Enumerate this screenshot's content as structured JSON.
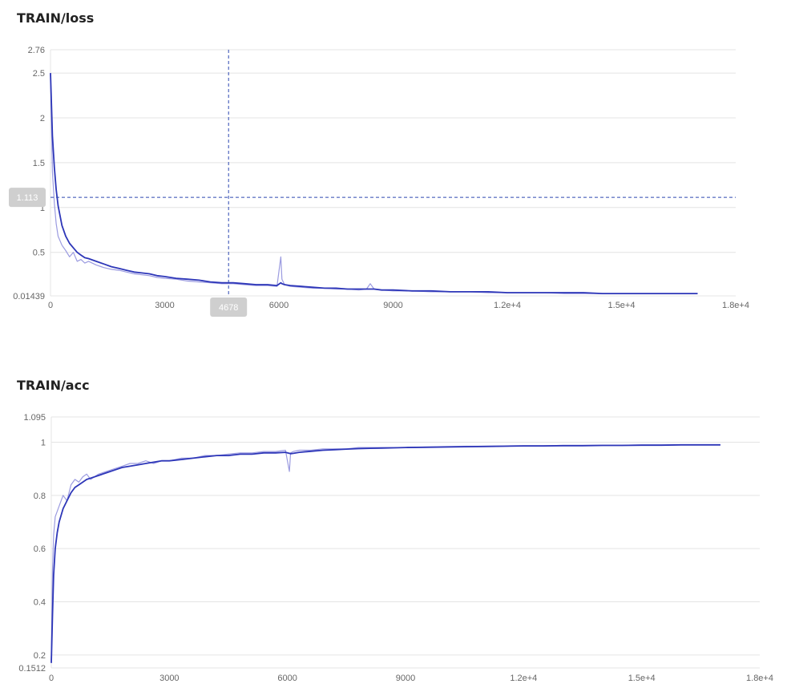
{
  "colors": {
    "raw_series": "#9b9be0",
    "smoothed_series": "#2d36b8",
    "gridline": "#e4e4e4",
    "axis_text": "#666666",
    "cursor_line": "#2d48b0",
    "cursor_tag_bg": "#cfcfcf"
  },
  "chart_data": [
    {
      "type": "line",
      "title": "TRAIN/loss",
      "xlabel": "",
      "ylabel": "",
      "xlim": [
        0,
        18000
      ],
      "ylim": [
        0.01439,
        2.76
      ],
      "x_ticks": [
        0,
        3000,
        6000,
        9000,
        12000,
        15000,
        18000
      ],
      "x_tick_labels": [
        "0",
        "3000",
        "6000",
        "9000",
        "1.2e+4",
        "1.5e+4",
        "1.8e+4"
      ],
      "y_ticks": [
        0.01439,
        0.5,
        1,
        1.5,
        2,
        2.5,
        2.76
      ],
      "y_tick_labels": [
        "0.01439",
        "0.5",
        "1",
        "1.5",
        "2",
        "2.5",
        "2.76"
      ],
      "grid": true,
      "cursor": {
        "x": 4678,
        "y": 1.113,
        "x_label": "4678",
        "y_label": "1.113"
      },
      "series": [
        {
          "role": "raw",
          "x": [
            0,
            50,
            100,
            150,
            200,
            300,
            400,
            500,
            600,
            700,
            800,
            900,
            1000,
            1200,
            1400,
            1600,
            1800,
            2000,
            2200,
            2400,
            2600,
            2800,
            3000,
            3300,
            3600,
            3900,
            4200,
            4500,
            4800,
            5100,
            5400,
            5700,
            5950,
            6050,
            6080,
            6150,
            6300,
            6600,
            6900,
            7200,
            7500,
            7800,
            8100,
            8300,
            8400,
            8500,
            8700,
            9000,
            9500,
            10000,
            10500,
            11000,
            11500,
            12000,
            12500,
            13000,
            13500,
            14000,
            14500,
            15000,
            15500,
            16000,
            16500,
            17000
          ],
          "values": [
            2.5,
            1.4,
            1.05,
            0.82,
            0.68,
            0.58,
            0.52,
            0.45,
            0.5,
            0.4,
            0.42,
            0.38,
            0.4,
            0.36,
            0.33,
            0.31,
            0.3,
            0.28,
            0.26,
            0.25,
            0.24,
            0.22,
            0.21,
            0.2,
            0.18,
            0.17,
            0.16,
            0.15,
            0.15,
            0.14,
            0.13,
            0.13,
            0.12,
            0.45,
            0.2,
            0.14,
            0.12,
            0.11,
            0.1,
            0.1,
            0.09,
            0.09,
            0.08,
            0.09,
            0.15,
            0.09,
            0.08,
            0.07,
            0.07,
            0.06,
            0.06,
            0.06,
            0.05,
            0.05,
            0.05,
            0.05,
            0.04,
            0.04,
            0.04,
            0.04,
            0.04,
            0.04,
            0.04,
            0.04
          ]
        },
        {
          "role": "smoothed",
          "x": [
            0,
            50,
            100,
            150,
            200,
            300,
            400,
            500,
            600,
            700,
            800,
            900,
            1000,
            1200,
            1400,
            1600,
            1800,
            2000,
            2200,
            2400,
            2600,
            2800,
            3000,
            3300,
            3600,
            3900,
            4200,
            4500,
            4800,
            5100,
            5400,
            5700,
            5950,
            6050,
            6080,
            6150,
            6300,
            6600,
            6900,
            7200,
            7500,
            7800,
            8100,
            8300,
            8400,
            8500,
            8700,
            9000,
            9500,
            10000,
            10500,
            11000,
            11500,
            12000,
            12500,
            13000,
            13500,
            14000,
            14500,
            15000,
            15500,
            16000,
            16500,
            17000
          ],
          "values": [
            2.5,
            1.8,
            1.45,
            1.2,
            1.02,
            0.8,
            0.68,
            0.6,
            0.55,
            0.5,
            0.47,
            0.44,
            0.43,
            0.4,
            0.37,
            0.34,
            0.32,
            0.3,
            0.28,
            0.27,
            0.26,
            0.24,
            0.23,
            0.21,
            0.2,
            0.19,
            0.17,
            0.16,
            0.16,
            0.15,
            0.14,
            0.14,
            0.13,
            0.16,
            0.15,
            0.14,
            0.13,
            0.12,
            0.11,
            0.1,
            0.1,
            0.09,
            0.09,
            0.09,
            0.09,
            0.09,
            0.08,
            0.08,
            0.07,
            0.07,
            0.06,
            0.06,
            0.06,
            0.05,
            0.05,
            0.05,
            0.05,
            0.05,
            0.04,
            0.04,
            0.04,
            0.04,
            0.04,
            0.04
          ]
        }
      ]
    },
    {
      "type": "line",
      "title": "TRAIN/acc",
      "xlabel": "",
      "ylabel": "",
      "xlim": [
        0,
        18000
      ],
      "ylim": [
        0.1512,
        1.095
      ],
      "x_ticks": [
        0,
        3000,
        6000,
        9000,
        12000,
        15000,
        18000
      ],
      "x_tick_labels": [
        "0",
        "3000",
        "6000",
        "9000",
        "1.2e+4",
        "1.5e+4",
        "1.8e+4"
      ],
      "y_ticks": [
        0.1512,
        0.2,
        0.4,
        0.6,
        0.8,
        1,
        1.095
      ],
      "y_tick_labels": [
        "0.1512",
        "0.2",
        "0.4",
        "0.6",
        "0.8",
        "1",
        "1.095"
      ],
      "grid": true,
      "series": [
        {
          "role": "raw",
          "x": [
            0,
            30,
            60,
            100,
            150,
            200,
            300,
            400,
            500,
            600,
            700,
            800,
            900,
            1000,
            1200,
            1400,
            1600,
            1800,
            2000,
            2200,
            2400,
            2600,
            2800,
            3000,
            3300,
            3600,
            3900,
            4200,
            4500,
            4800,
            5100,
            5400,
            5700,
            5950,
            6050,
            6080,
            6150,
            6300,
            6600,
            6900,
            7200,
            7500,
            7800,
            8100,
            8400,
            8700,
            9000,
            9500,
            10000,
            10500,
            11000,
            11500,
            12000,
            12500,
            13000,
            13500,
            14000,
            14500,
            15000,
            15500,
            16000,
            16500,
            17000
          ],
          "values": [
            0.18,
            0.52,
            0.65,
            0.72,
            0.74,
            0.76,
            0.8,
            0.78,
            0.84,
            0.86,
            0.85,
            0.87,
            0.88,
            0.86,
            0.88,
            0.89,
            0.9,
            0.91,
            0.92,
            0.92,
            0.93,
            0.92,
            0.93,
            0.93,
            0.94,
            0.94,
            0.95,
            0.95,
            0.955,
            0.96,
            0.96,
            0.965,
            0.965,
            0.97,
            0.89,
            0.96,
            0.965,
            0.97,
            0.97,
            0.975,
            0.975,
            0.975,
            0.98,
            0.98,
            0.98,
            0.98,
            0.98,
            0.982,
            0.984,
            0.985,
            0.985,
            0.986,
            0.987,
            0.987,
            0.988,
            0.988,
            0.989,
            0.989,
            0.99,
            0.99,
            0.99,
            0.99,
            0.99
          ]
        },
        {
          "role": "smoothed",
          "x": [
            0,
            30,
            60,
            100,
            150,
            200,
            300,
            400,
            500,
            600,
            700,
            800,
            900,
            1000,
            1200,
            1400,
            1600,
            1800,
            2000,
            2200,
            2400,
            2600,
            2800,
            3000,
            3300,
            3600,
            3900,
            4200,
            4500,
            4800,
            5100,
            5400,
            5700,
            5950,
            6050,
            6080,
            6150,
            6300,
            6600,
            6900,
            7200,
            7500,
            7800,
            8100,
            8400,
            8700,
            9000,
            9500,
            10000,
            10500,
            11000,
            11500,
            12000,
            12500,
            13000,
            13500,
            14000,
            14500,
            15000,
            15500,
            16000,
            16500,
            17000
          ],
          "values": [
            0.17,
            0.35,
            0.5,
            0.6,
            0.66,
            0.7,
            0.75,
            0.78,
            0.81,
            0.83,
            0.84,
            0.85,
            0.86,
            0.865,
            0.875,
            0.885,
            0.895,
            0.905,
            0.91,
            0.915,
            0.92,
            0.925,
            0.93,
            0.93,
            0.935,
            0.94,
            0.945,
            0.95,
            0.95,
            0.955,
            0.955,
            0.96,
            0.96,
            0.962,
            0.958,
            0.957,
            0.958,
            0.962,
            0.966,
            0.97,
            0.972,
            0.974,
            0.976,
            0.977,
            0.978,
            0.979,
            0.98,
            0.981,
            0.982,
            0.983,
            0.984,
            0.985,
            0.986,
            0.986,
            0.987,
            0.987,
            0.988,
            0.988,
            0.989,
            0.989,
            0.99,
            0.99,
            0.99
          ]
        }
      ]
    }
  ]
}
